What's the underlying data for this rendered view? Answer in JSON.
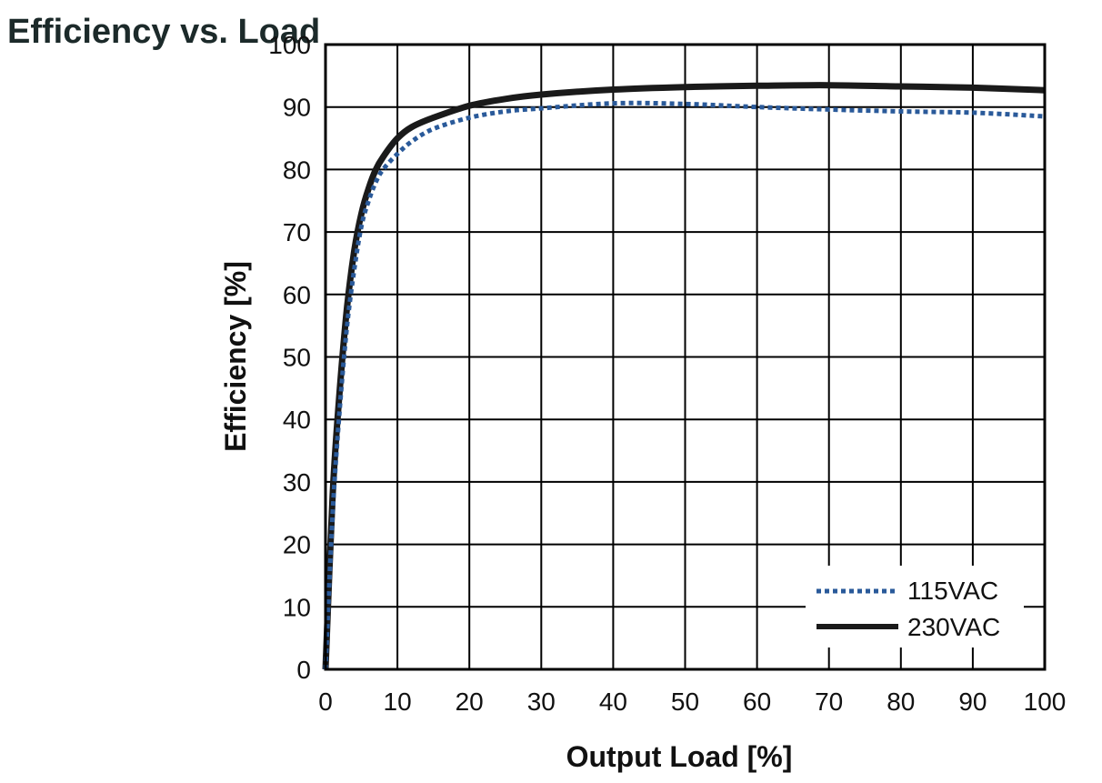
{
  "chart_data": {
    "type": "line",
    "title": "Efficiency vs. Load",
    "xlabel": "Output Load [%]",
    "ylabel": "Efficiency [%]",
    "xlim": [
      0,
      100
    ],
    "ylim": [
      0,
      100
    ],
    "xticks": [
      "0",
      "10",
      "20",
      "30",
      "40",
      "50",
      "60",
      "70",
      "80",
      "90",
      "100"
    ],
    "yticks": [
      "0",
      "10",
      "20",
      "30",
      "40",
      "50",
      "60",
      "70",
      "80",
      "90",
      "100"
    ],
    "grid": true,
    "legend_position": "bottom-right",
    "series": [
      {
        "name": "115VAC",
        "color": "#2a5a9a",
        "style": "dotted",
        "x": [
          0,
          1,
          2,
          3,
          4,
          5,
          6,
          7,
          8,
          10,
          12,
          15,
          20,
          25,
          30,
          40,
          50,
          60,
          70,
          80,
          90,
          100
        ],
        "y": [
          0,
          25,
          42,
          55,
          64,
          71,
          75,
          78,
          80,
          82.5,
          84.5,
          86.5,
          88.3,
          89.3,
          89.8,
          90.6,
          90.5,
          90,
          89.6,
          89.3,
          89.1,
          88.5
        ]
      },
      {
        "name": "230VAC",
        "color": "#1a1a1a",
        "style": "solid",
        "x": [
          0,
          1,
          2,
          3,
          4,
          5,
          6,
          7,
          8,
          10,
          12,
          15,
          20,
          25,
          30,
          40,
          50,
          60,
          70,
          80,
          90,
          100
        ],
        "y": [
          0,
          28,
          45,
          58,
          67,
          73,
          77,
          80,
          82,
          85,
          86.8,
          88.3,
          90.2,
          91.3,
          92,
          92.8,
          93.2,
          93.4,
          93.5,
          93.3,
          93.1,
          92.7
        ]
      }
    ]
  }
}
